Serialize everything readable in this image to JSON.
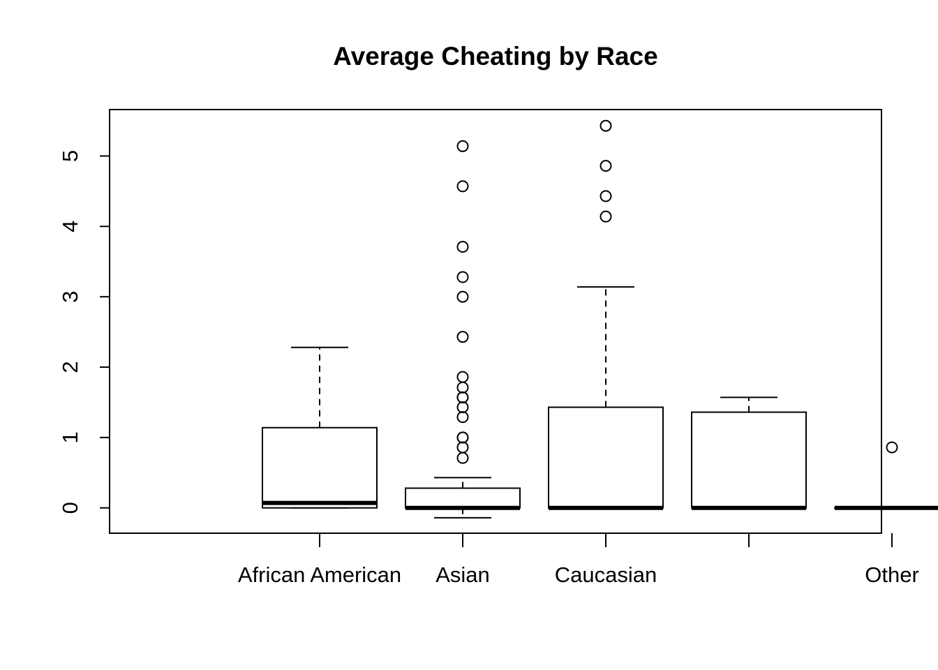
{
  "chart_data": {
    "type": "boxplot",
    "title": "Average Cheating by Race",
    "xlabel": "",
    "ylabel": "",
    "ylim": [
      -0.36,
      5.66
    ],
    "y_ticks": [
      0,
      1,
      2,
      3,
      4,
      5
    ],
    "grid": false,
    "categories": [
      "African American",
      "Asian",
      "Caucasian",
      "",
      "Other"
    ],
    "boxes": [
      {
        "category": "African American",
        "whisker_low": 0,
        "q1": 0,
        "median": 0.07,
        "q3": 1.14,
        "whisker_high": 2.28,
        "outliers": []
      },
      {
        "category": "Asian",
        "whisker_low": -0.14,
        "q1": 0,
        "median": 0,
        "q3": 0.28,
        "whisker_high": 0.43,
        "outliers": [
          0.71,
          0.86,
          1.0,
          1.0,
          1.29,
          1.43,
          1.57,
          1.57,
          1.71,
          1.86,
          2.43,
          3.0,
          3.28,
          3.71,
          4.57,
          5.14
        ]
      },
      {
        "category": "Caucasian",
        "whisker_low": 0,
        "q1": 0,
        "median": 0,
        "q3": 1.43,
        "whisker_high": 3.14,
        "outliers": [
          4.14,
          4.43,
          4.86,
          5.43
        ]
      },
      {
        "category": "",
        "whisker_low": 0,
        "q1": 0,
        "median": 0,
        "q3": 1.36,
        "whisker_high": 1.57,
        "outliers": []
      },
      {
        "category": "Other",
        "whisker_low": 0,
        "q1": 0,
        "median": 0,
        "q3": 0,
        "whisker_high": 0,
        "outliers": [
          0.86
        ]
      }
    ]
  }
}
